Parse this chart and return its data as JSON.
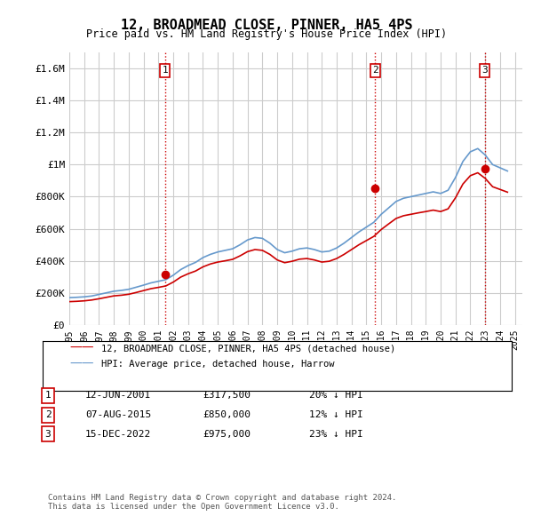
{
  "title": "12, BROADMEAD CLOSE, PINNER, HA5 4PS",
  "subtitle": "Price paid vs. HM Land Registry's House Price Index (HPI)",
  "ylabel_ticks": [
    "£0",
    "£200K",
    "£400K",
    "£600K",
    "£800K",
    "£1M",
    "£1.2M",
    "£1.4M",
    "£1.6M"
  ],
  "ytick_values": [
    0,
    200000,
    400000,
    600000,
    800000,
    1000000,
    1200000,
    1400000,
    1600000
  ],
  "ylim": [
    0,
    1700000
  ],
  "xlim_start": 1995.0,
  "xlim_end": 2025.5,
  "sale_dates": [
    2001.45,
    2015.6,
    2022.96
  ],
  "sale_prices": [
    317500,
    850000,
    975000
  ],
  "sale_labels": [
    "1",
    "2",
    "3"
  ],
  "vline_color": "#cc0000",
  "vline_style": ":",
  "sale_marker_color": "#cc0000",
  "hpi_line_color": "#6699cc",
  "price_line_color": "#cc0000",
  "grid_color": "#cccccc",
  "background_color": "#ffffff",
  "legend_entries": [
    "12, BROADMEAD CLOSE, PINNER, HA5 4PS (detached house)",
    "HPI: Average price, detached house, Harrow"
  ],
  "table_rows": [
    [
      "1",
      "12-JUN-2001",
      "£317,500",
      "20% ↓ HPI"
    ],
    [
      "2",
      "07-AUG-2015",
      "£850,000",
      "12% ↓ HPI"
    ],
    [
      "3",
      "15-DEC-2022",
      "£975,000",
      "23% ↓ HPI"
    ]
  ],
  "footer": "Contains HM Land Registry data © Crown copyright and database right 2024.\nThis data is licensed under the Open Government Licence v3.0.",
  "hpi_x": [
    1995.0,
    1995.5,
    1996.0,
    1996.5,
    1997.0,
    1997.5,
    1998.0,
    1998.5,
    1999.0,
    1999.5,
    2000.0,
    2000.5,
    2001.0,
    2001.5,
    2002.0,
    2002.5,
    2003.0,
    2003.5,
    2004.0,
    2004.5,
    2005.0,
    2005.5,
    2006.0,
    2006.5,
    2007.0,
    2007.5,
    2008.0,
    2008.5,
    2009.0,
    2009.5,
    2010.0,
    2010.5,
    2011.0,
    2011.5,
    2012.0,
    2012.5,
    2013.0,
    2013.5,
    2014.0,
    2014.5,
    2015.0,
    2015.5,
    2016.0,
    2016.5,
    2017.0,
    2017.5,
    2018.0,
    2018.5,
    2019.0,
    2019.5,
    2020.0,
    2020.5,
    2021.0,
    2021.5,
    2022.0,
    2022.5,
    2023.0,
    2023.5,
    2024.0,
    2024.5
  ],
  "hpi_y": [
    170000,
    172000,
    175000,
    180000,
    190000,
    200000,
    210000,
    215000,
    222000,
    235000,
    248000,
    262000,
    272000,
    282000,
    310000,
    345000,
    370000,
    390000,
    420000,
    440000,
    455000,
    465000,
    475000,
    500000,
    530000,
    545000,
    540000,
    510000,
    470000,
    450000,
    460000,
    475000,
    480000,
    470000,
    455000,
    460000,
    480000,
    510000,
    545000,
    580000,
    610000,
    640000,
    690000,
    730000,
    770000,
    790000,
    800000,
    810000,
    820000,
    830000,
    820000,
    840000,
    920000,
    1020000,
    1080000,
    1100000,
    1060000,
    1000000,
    980000,
    960000
  ],
  "price_x": [
    1995.0,
    1995.5,
    1996.0,
    1996.5,
    1997.0,
    1997.5,
    1998.0,
    1998.5,
    1999.0,
    1999.5,
    2000.0,
    2000.5,
    2001.0,
    2001.5,
    2002.0,
    2002.5,
    2003.0,
    2003.5,
    2004.0,
    2004.5,
    2005.0,
    2005.5,
    2006.0,
    2006.5,
    2007.0,
    2007.5,
    2008.0,
    2008.5,
    2009.0,
    2009.5,
    2010.0,
    2010.5,
    2011.0,
    2011.5,
    2012.0,
    2012.5,
    2013.0,
    2013.5,
    2014.0,
    2014.5,
    2015.0,
    2015.5,
    2016.0,
    2016.5,
    2017.0,
    2017.5,
    2018.0,
    2018.5,
    2019.0,
    2019.5,
    2020.0,
    2020.5,
    2021.0,
    2021.5,
    2022.0,
    2022.5,
    2023.0,
    2023.5,
    2024.0,
    2024.5
  ],
  "price_y": [
    145000,
    147000,
    150000,
    155000,
    163000,
    172000,
    181000,
    185000,
    191000,
    202000,
    214000,
    226000,
    234000,
    243000,
    267000,
    298000,
    319000,
    336000,
    362000,
    380000,
    392000,
    400000,
    409000,
    431000,
    457000,
    470000,
    465000,
    440000,
    405000,
    388000,
    397000,
    410000,
    414000,
    405000,
    392000,
    397000,
    414000,
    440000,
    470000,
    500000,
    526000,
    552000,
    595000,
    630000,
    664000,
    681000,
    690000,
    699000,
    707000,
    716000,
    707000,
    724000,
    793000,
    879000,
    931000,
    949000,
    914000,
    862000,
    845000,
    828000
  ]
}
